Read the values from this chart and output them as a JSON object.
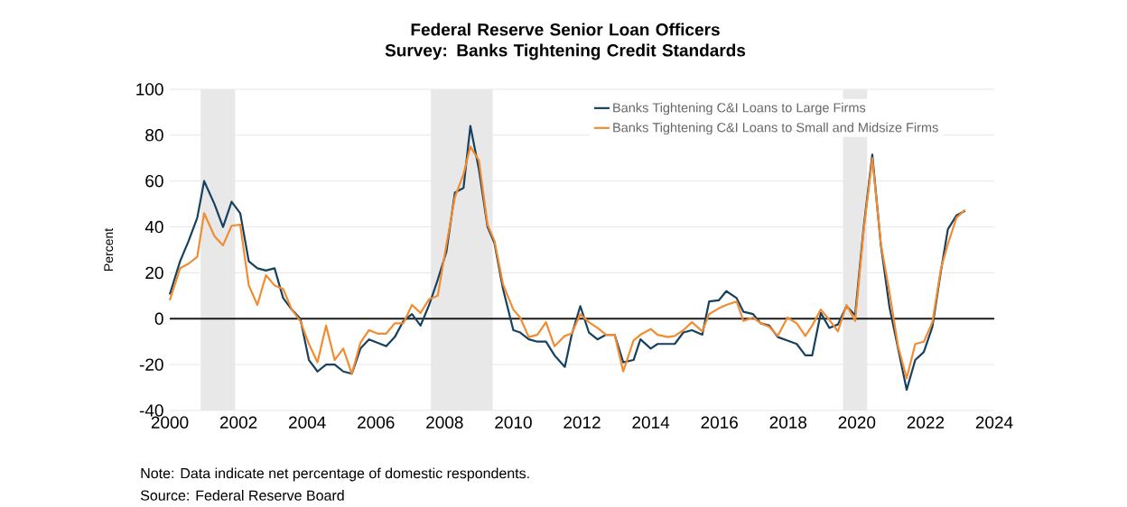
{
  "chart_data": {
    "type": "line",
    "title": "Federal Reserve Senior Loan Officers Survey: Banks Tightening Credit Standards",
    "ylabel": "Percent",
    "x": [
      2000.0,
      2000.3,
      2000.55,
      2000.8,
      2001.0,
      2001.3,
      2001.55,
      2001.8,
      2002.05,
      2002.3,
      2002.55,
      2002.8,
      2003.05,
      2003.3,
      2003.55,
      2003.8,
      2004.05,
      2004.3,
      2004.55,
      2004.8,
      2005.05,
      2005.3,
      2005.55,
      2005.8,
      2006.05,
      2006.3,
      2006.55,
      2006.8,
      2007.05,
      2007.3,
      2007.55,
      2007.8,
      2008.05,
      2008.3,
      2008.55,
      2008.75,
      2009.0,
      2009.25,
      2009.45,
      2009.7,
      2010.0,
      2010.2,
      2010.45,
      2010.7,
      2010.95,
      2011.2,
      2011.5,
      2011.7,
      2011.95,
      2012.2,
      2012.45,
      2012.7,
      2012.95,
      2013.2,
      2013.5,
      2013.7,
      2014.0,
      2014.2,
      2014.5,
      2014.7,
      2014.95,
      2015.2,
      2015.5,
      2015.7,
      2015.98,
      2016.2,
      2016.5,
      2016.7,
      2016.98,
      2017.2,
      2017.45,
      2017.7,
      2017.98,
      2018.25,
      2018.5,
      2018.7,
      2018.95,
      2019.2,
      2019.45,
      2019.7,
      2019.95,
      2020.2,
      2020.45,
      2020.7,
      2020.95,
      2021.2,
      2021.45,
      2021.7,
      2021.95,
      2022.2,
      2022.45,
      2022.65,
      2022.9,
      2023.15
    ],
    "series": [
      {
        "name": "Banks Tightening C&I Loans to Large Firms",
        "color": "#17415f",
        "values": [
          10.6,
          25,
          34,
          44,
          60,
          50,
          40,
          51,
          46,
          25,
          22,
          21,
          22,
          9,
          4,
          0,
          -18,
          -23,
          -20,
          -20,
          -23,
          -24,
          -13,
          -9,
          -10.5,
          -12,
          -8,
          -1,
          2,
          -3,
          6,
          17,
          29,
          55,
          57,
          84,
          65,
          40,
          33,
          13,
          -5,
          -6,
          -9,
          -10,
          -10,
          -16,
          -21,
          -7,
          5.5,
          -6,
          -9,
          -7,
          -7,
          -19,
          -18,
          -9,
          -13,
          -11,
          -11,
          -11,
          -6,
          -5,
          -7,
          7.5,
          8,
          12,
          9,
          3,
          2,
          -2,
          -3,
          -8,
          -9.5,
          -11,
          -16,
          -16,
          2.5,
          -4,
          -2.5,
          5.5,
          1.5,
          40,
          71.5,
          32,
          5,
          -13,
          -31,
          -18,
          -14.5,
          -3.5,
          21,
          39,
          45,
          47
        ]
      },
      {
        "name": "Banks Tightening C&I Loans to Small and Midsize Firms",
        "color": "#f28c32",
        "values": [
          8,
          22,
          24,
          27,
          46,
          36,
          32,
          40.5,
          41,
          14.5,
          6,
          19,
          14.5,
          13,
          4,
          -1,
          -11,
          -19,
          -3,
          -18,
          -13,
          -24,
          -10.5,
          -5,
          -6.5,
          -6.5,
          -2,
          -2,
          6,
          2.5,
          8.5,
          10,
          32,
          53,
          63,
          75,
          69,
          41,
          34,
          15,
          4,
          0.5,
          -8,
          -7,
          -1.5,
          -12,
          -7.5,
          -6.5,
          2,
          -1.5,
          -4,
          -7,
          -7,
          -23,
          -9.5,
          -7,
          -4.5,
          -7,
          -8,
          -7.5,
          -5,
          -1.5,
          -5.5,
          2,
          4.5,
          6,
          7.5,
          -1,
          0.5,
          -2,
          -3.5,
          -7.5,
          0.5,
          -2,
          -7.5,
          -3,
          4,
          -0.5,
          -5.5,
          6,
          -1,
          38.5,
          70,
          32.5,
          11.5,
          -12,
          -26,
          -11,
          -10,
          -1.5,
          22,
          32.5,
          44,
          47.5
        ]
      }
    ],
    "xlim": [
      2000,
      2024
    ],
    "xticks": [
      2000,
      2002,
      2004,
      2006,
      2008,
      2010,
      2012,
      2014,
      2016,
      2018,
      2020,
      2022,
      2024
    ],
    "ylim": [
      -40,
      100
    ],
    "yticks": [
      -40,
      -20,
      0,
      20,
      40,
      60,
      80,
      100
    ],
    "ref_lines": [
      {
        "axis": "y",
        "value": 0,
        "color": "#1a1a1a"
      }
    ],
    "bands": [
      {
        "axis": "x",
        "from": 2000.9,
        "to": 2001.9,
        "color": "#e8e8e8"
      },
      {
        "axis": "x",
        "from": 2007.6,
        "to": 2009.4,
        "color": "#e8e8e8"
      },
      {
        "axis": "x",
        "from": 2019.6,
        "to": 2020.3,
        "color": "#e8e8e8"
      }
    ],
    "grid": "y",
    "legend": "top right",
    "line_style": "solid",
    "annotations": [
      "Note: Data indicate net percentage of domestic respondents.",
      "Source: Federal Reserve Board"
    ]
  }
}
